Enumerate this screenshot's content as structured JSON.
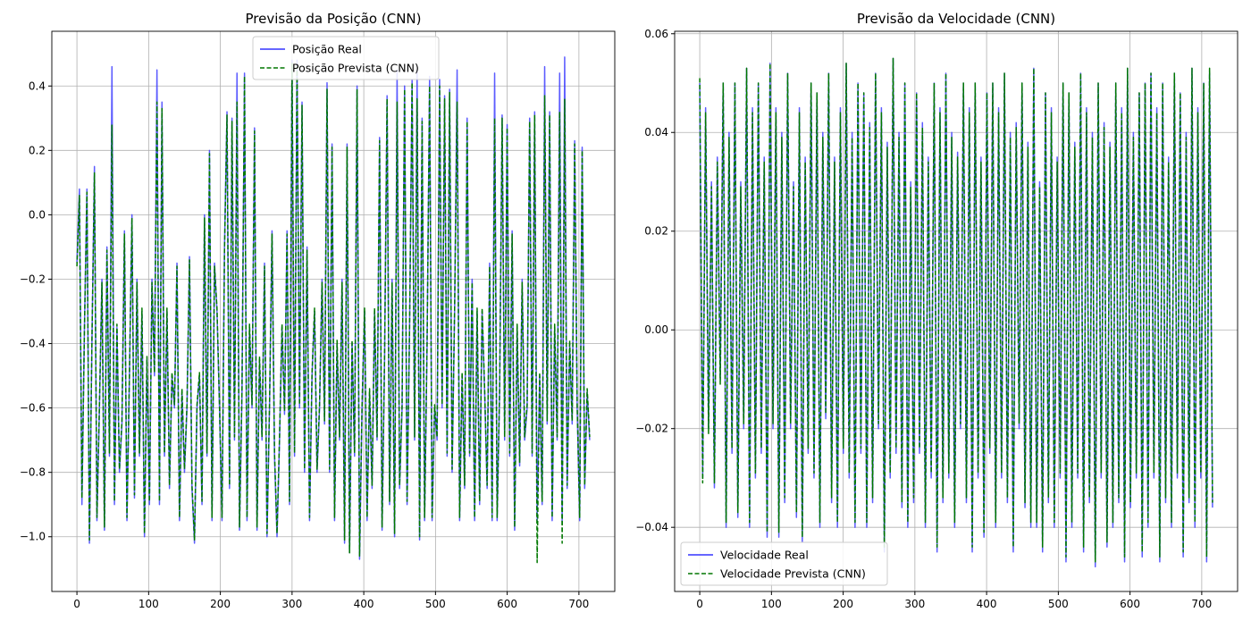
{
  "chart_data": [
    {
      "type": "line",
      "title": "Previsão da Posição (CNN)",
      "xlabel": "",
      "ylabel": "",
      "xlim": [
        -35,
        750
      ],
      "ylim": [
        -1.17,
        0.57
      ],
      "x_ticks": [
        0,
        100,
        200,
        300,
        400,
        500,
        600,
        700
      ],
      "y_ticks": [
        -1.0,
        -0.8,
        -0.6,
        -0.4,
        -0.2,
        0.0,
        0.2,
        0.4
      ],
      "x_tick_labels": [
        "0",
        "100",
        "200",
        "300",
        "400",
        "500",
        "600",
        "700"
      ],
      "y_tick_labels": [
        "−1.0",
        "−0.8",
        "−0.6",
        "−0.4",
        "−0.2",
        "0.0",
        "0.2",
        "0.4"
      ],
      "grid": true,
      "legend_position": "upper center",
      "series": [
        {
          "name": "Posição Real",
          "color": "#3333ff",
          "style": "solid",
          "x_start": 0,
          "x_end": 715,
          "values": [
            -0.15,
            0.08,
            -0.9,
            -0.35,
            0.08,
            -1.02,
            -0.4,
            0.15,
            -0.95,
            -0.6,
            -0.2,
            -0.98,
            -0.1,
            -0.75,
            0.46,
            -0.9,
            -0.35,
            -0.8,
            -0.65,
            -0.05,
            -0.95,
            -0.5,
            0.0,
            -0.88,
            -0.2,
            -0.75,
            -0.3,
            -1.0,
            -0.45,
            -0.9,
            -0.2,
            -0.5,
            0.45,
            -0.9,
            0.35,
            -0.75,
            -0.3,
            -0.85,
            -0.5,
            -0.6,
            -0.15,
            -0.95,
            -0.55,
            -0.8,
            -0.6,
            -0.13,
            -0.85,
            -1.02,
            -0.6,
            -0.5,
            -0.9,
            0.0,
            -0.75,
            0.2,
            -0.95,
            -0.15,
            -0.3,
            -0.6,
            -0.95,
            -0.1,
            0.32,
            -0.85,
            0.3,
            -0.7,
            0.44,
            -0.98,
            -0.55,
            0.44,
            -0.95,
            -0.35,
            -0.6,
            0.27,
            -0.98,
            -0.45,
            -0.7,
            -0.15,
            -1.0,
            -0.6,
            -0.05,
            -0.75,
            -1.0,
            -0.7,
            -0.35,
            -0.62,
            -0.05,
            -0.9,
            0.48,
            -0.75,
            0.48,
            -0.6,
            0.35,
            -0.8,
            -0.1,
            -0.95,
            -0.5,
            -0.3,
            -0.8,
            -0.6,
            -0.2,
            -0.65,
            0.41,
            -0.8,
            0.22,
            -0.95,
            -0.4,
            -0.7,
            -0.2,
            -1.02,
            0.22,
            -1.05,
            -0.4,
            -0.75,
            0.4,
            -1.07,
            -0.6,
            -0.3,
            -0.95,
            -0.55,
            -0.85,
            -0.3,
            -0.7,
            0.24,
            -0.98,
            -0.45,
            0.37,
            -0.9,
            -0.2,
            -1.0,
            0.45,
            -0.85,
            -0.6,
            0.4,
            -0.9,
            -0.35,
            0.42,
            -0.7,
            0.45,
            -1.01,
            0.3,
            -0.95,
            -0.4,
            0.43,
            -0.95,
            -0.6,
            -0.7,
            0.42,
            -0.6,
            0.37,
            -0.75,
            0.39,
            -0.8,
            -0.3,
            0.45,
            -0.95,
            -0.5,
            -0.85,
            0.3,
            -0.75,
            -0.2,
            -0.95,
            -0.3,
            -0.9,
            -0.3,
            -0.55,
            -0.85,
            -0.15,
            -0.95,
            0.44,
            -0.95,
            -0.55,
            0.31,
            -0.7,
            0.28,
            -0.75,
            -0.05,
            -0.98,
            -0.35,
            -0.78,
            -0.2,
            -0.7,
            -0.6,
            0.3,
            -0.75,
            0.32,
            -0.95,
            -0.5,
            -0.9,
            0.46,
            -0.65,
            0.32,
            -0.95,
            -0.35,
            -0.7,
            0.44,
            -0.95,
            0.49,
            -0.85,
            -0.4,
            -0.65,
            0.23,
            -0.6,
            -0.95,
            0.21,
            -0.85,
            -0.55,
            -0.7
          ]
        },
        {
          "name": "Posição Prevista (CNN)",
          "color": "#007700",
          "style": "dashed",
          "x_start": 0,
          "x_end": 715,
          "values": [
            -0.16,
            0.06,
            -0.88,
            -0.36,
            0.07,
            -1.01,
            -0.39,
            0.13,
            -0.94,
            -0.59,
            -0.21,
            -0.97,
            -0.11,
            -0.74,
            0.28,
            -0.89,
            -0.34,
            -0.79,
            -0.64,
            -0.06,
            -0.94,
            -0.49,
            -0.01,
            -0.87,
            -0.21,
            -0.74,
            -0.29,
            -0.99,
            -0.44,
            -0.89,
            -0.21,
            -0.49,
            0.35,
            -0.89,
            0.33,
            -0.74,
            -0.29,
            -0.84,
            -0.49,
            -0.59,
            -0.16,
            -0.94,
            -0.54,
            -0.79,
            -0.59,
            -0.14,
            -0.84,
            -1.01,
            -0.59,
            -0.49,
            -0.89,
            -0.01,
            -0.74,
            0.19,
            -0.94,
            -0.16,
            -0.29,
            -0.59,
            -0.94,
            -0.11,
            0.31,
            -0.84,
            0.29,
            -0.69,
            0.35,
            -0.97,
            -0.54,
            0.43,
            -0.94,
            -0.34,
            -0.59,
            0.26,
            -0.97,
            -0.44,
            -0.69,
            -0.16,
            -0.99,
            -0.59,
            -0.06,
            -0.74,
            -0.99,
            -0.69,
            -0.34,
            -0.61,
            -0.06,
            -0.89,
            0.47,
            -0.74,
            0.46,
            -0.59,
            0.34,
            -0.79,
            -0.11,
            -0.94,
            -0.49,
            -0.29,
            -0.79,
            -0.59,
            -0.21,
            -0.64,
            0.39,
            -0.79,
            0.21,
            -0.94,
            -0.39,
            -0.69,
            -0.21,
            -1.01,
            0.21,
            -1.05,
            -0.39,
            -0.74,
            0.39,
            -1.06,
            -0.59,
            -0.29,
            -0.94,
            -0.54,
            -0.84,
            -0.29,
            -0.69,
            0.23,
            -0.97,
            -0.44,
            0.36,
            -0.89,
            -0.21,
            -0.99,
            0.35,
            -0.84,
            -0.59,
            0.39,
            -0.89,
            -0.34,
            0.41,
            -0.69,
            0.36,
            -1.0,
            0.29,
            -0.94,
            -0.39,
            0.4,
            -0.94,
            -0.59,
            -0.69,
            0.4,
            -0.59,
            0.36,
            -0.74,
            0.38,
            -0.79,
            -0.29,
            0.35,
            -0.94,
            -0.49,
            -0.84,
            0.29,
            -0.74,
            -0.21,
            -0.94,
            -0.29,
            -0.89,
            -0.29,
            -0.54,
            -0.84,
            -0.16,
            -0.94,
            0.3,
            -0.94,
            -0.54,
            0.3,
            -0.69,
            0.27,
            -0.74,
            -0.06,
            -0.97,
            -0.34,
            -0.77,
            -0.21,
            -0.69,
            -0.59,
            0.29,
            -0.74,
            0.31,
            -1.08,
            -0.49,
            -0.89,
            0.37,
            -0.64,
            0.31,
            -0.94,
            -0.34,
            -0.69,
            0.32,
            -1.02,
            0.36,
            -0.84,
            -0.39,
            -0.64,
            0.22,
            -0.59,
            -0.94,
            0.2,
            -0.84,
            -0.54,
            -0.69
          ]
        }
      ]
    },
    {
      "type": "line",
      "title": "Previsão da Velocidade (CNN)",
      "xlabel": "",
      "ylabel": "",
      "xlim": [
        -35,
        750
      ],
      "ylim": [
        -0.053,
        0.0605
      ],
      "x_ticks": [
        0,
        100,
        200,
        300,
        400,
        500,
        600,
        700
      ],
      "y_ticks": [
        -0.04,
        -0.02,
        0.0,
        0.02,
        0.04,
        0.06
      ],
      "x_tick_labels": [
        "0",
        "100",
        "200",
        "300",
        "400",
        "500",
        "600",
        "700"
      ],
      "y_tick_labels": [
        "−0.04",
        "−0.02",
        "0.00",
        "0.02",
        "0.04",
        "0.06"
      ],
      "grid": true,
      "legend_position": "lower left",
      "series": [
        {
          "name": "Velocidade Real",
          "color": "#3333ff",
          "style": "solid",
          "x_start": 0,
          "x_end": 715,
          "values": [
            0.05,
            -0.03,
            0.045,
            -0.02,
            0.03,
            -0.032,
            0.035,
            -0.01,
            0.05,
            -0.04,
            0.04,
            -0.025,
            0.05,
            -0.038,
            0.03,
            -0.02,
            0.053,
            -0.04,
            0.045,
            -0.03,
            0.05,
            -0.025,
            0.035,
            -0.042,
            0.054,
            -0.02,
            0.045,
            -0.042,
            0.04,
            -0.035,
            0.052,
            -0.02,
            0.03,
            -0.038,
            0.045,
            -0.043,
            0.035,
            -0.025,
            0.05,
            -0.03,
            0.048,
            -0.04,
            0.04,
            -0.018,
            0.052,
            -0.035,
            0.035,
            -0.04,
            0.045,
            -0.025,
            0.054,
            -0.03,
            0.04,
            -0.04,
            0.05,
            -0.025,
            0.048,
            -0.04,
            0.042,
            -0.035,
            0.052,
            -0.02,
            0.045,
            -0.045,
            0.038,
            -0.03,
            0.055,
            -0.025,
            0.04,
            -0.036,
            0.05,
            -0.04,
            0.03,
            -0.035,
            0.048,
            -0.025,
            0.042,
            -0.04,
            0.035,
            -0.03,
            0.05,
            -0.045,
            0.045,
            -0.035,
            0.052,
            -0.03,
            0.04,
            -0.04,
            0.036,
            -0.02,
            0.05,
            -0.035,
            0.045,
            -0.045,
            0.05,
            -0.03,
            0.035,
            -0.042,
            0.048,
            -0.025,
            0.05,
            -0.04,
            0.045,
            -0.03,
            0.052,
            -0.035,
            0.04,
            -0.045,
            0.042,
            -0.02,
            0.05,
            -0.036,
            0.038,
            -0.04,
            0.053,
            -0.04,
            0.03,
            -0.045,
            0.048,
            -0.035,
            0.045,
            -0.04,
            0.035,
            -0.03,
            0.05,
            -0.047,
            0.048,
            -0.04,
            0.038,
            -0.03,
            0.052,
            -0.045,
            0.045,
            -0.035,
            0.04,
            -0.048,
            0.05,
            -0.03,
            0.042,
            -0.044,
            0.038,
            -0.04,
            0.05,
            -0.035,
            0.045,
            -0.047,
            0.053,
            -0.036,
            0.04,
            -0.03,
            0.048,
            -0.046,
            0.05,
            -0.04,
            0.052,
            -0.03,
            0.045,
            -0.047,
            0.05,
            -0.035,
            0.035,
            -0.04,
            0.052,
            -0.03,
            0.048,
            -0.046,
            0.04,
            -0.035,
            0.053,
            -0.04,
            0.045,
            -0.03,
            0.05,
            -0.047,
            0.052,
            -0.036
          ]
        },
        {
          "name": "Velocidade Prevista (CNN)",
          "color": "#007700",
          "style": "dashed",
          "x_start": 0,
          "x_end": 715,
          "values": [
            0.051,
            -0.031,
            0.044,
            -0.021,
            0.029,
            -0.031,
            0.034,
            -0.011,
            0.05,
            -0.039,
            0.039,
            -0.024,
            0.05,
            -0.037,
            0.029,
            -0.019,
            0.053,
            -0.039,
            0.044,
            -0.029,
            0.05,
            -0.024,
            0.034,
            -0.041,
            0.054,
            -0.019,
            0.044,
            -0.041,
            0.039,
            -0.034,
            0.052,
            -0.019,
            0.029,
            -0.037,
            0.044,
            -0.042,
            0.034,
            -0.024,
            0.05,
            -0.029,
            0.048,
            -0.039,
            0.039,
            -0.017,
            0.052,
            -0.034,
            0.034,
            -0.039,
            0.044,
            -0.024,
            0.054,
            -0.029,
            0.039,
            -0.039,
            0.05,
            -0.024,
            0.048,
            -0.039,
            0.041,
            -0.034,
            0.052,
            -0.019,
            0.044,
            -0.044,
            0.037,
            -0.029,
            0.055,
            -0.024,
            0.039,
            -0.035,
            0.05,
            -0.039,
            0.029,
            -0.034,
            0.048,
            -0.024,
            0.041,
            -0.039,
            0.034,
            -0.029,
            0.05,
            -0.044,
            0.044,
            -0.034,
            0.052,
            -0.029,
            0.039,
            -0.039,
            0.035,
            -0.019,
            0.05,
            -0.034,
            0.044,
            -0.044,
            0.05,
            -0.029,
            0.034,
            -0.041,
            0.048,
            -0.024,
            0.05,
            -0.039,
            0.044,
            -0.029,
            0.052,
            -0.034,
            0.039,
            -0.044,
            0.041,
            -0.019,
            0.05,
            -0.035,
            0.037,
            -0.039,
            0.053,
            -0.039,
            0.029,
            -0.044,
            0.048,
            -0.034,
            0.044,
            -0.039,
            0.034,
            -0.029,
            0.05,
            -0.046,
            0.048,
            -0.039,
            0.037,
            -0.029,
            0.052,
            -0.044,
            0.044,
            -0.034,
            0.039,
            -0.047,
            0.05,
            -0.029,
            0.041,
            -0.043,
            0.037,
            -0.039,
            0.05,
            -0.034,
            0.044,
            -0.046,
            0.053,
            -0.035,
            0.039,
            -0.029,
            0.048,
            -0.045,
            0.05,
            -0.039,
            0.052,
            -0.029,
            0.044,
            -0.046,
            0.05,
            -0.034,
            0.034,
            -0.039,
            0.052,
            -0.029,
            0.048,
            -0.045,
            0.039,
            -0.034,
            0.053,
            -0.039,
            0.044,
            -0.029,
            0.05,
            -0.046,
            0.053,
            -0.035
          ]
        }
      ]
    }
  ]
}
